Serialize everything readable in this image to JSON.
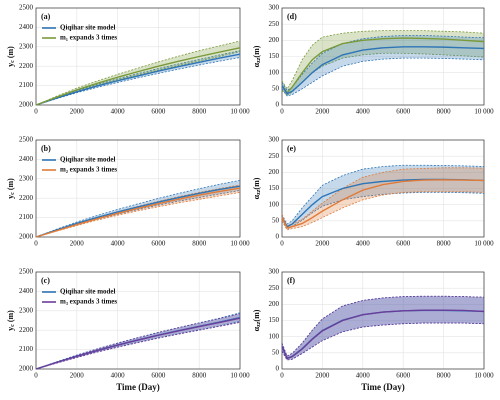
{
  "chart_data": [
    {
      "type": "line",
      "label": "(a)",
      "ylabel": {
        "main": "y",
        "sub": "c",
        "unit": " (m)"
      },
      "legend": "upper left",
      "grid": true,
      "x": [
        0,
        1000,
        2000,
        3000,
        4000,
        5000,
        6000,
        7000,
        8000,
        9000,
        10000
      ],
      "xlim": [
        0,
        10000
      ],
      "xticks": [
        0,
        2000,
        4000,
        6000,
        8000,
        {
          "value": 10000,
          "label": "10 000"
        }
      ],
      "ylim": [
        2000,
        2500
      ],
      "yticks": [
        2000,
        2100,
        2200,
        2300,
        2400,
        2500
      ],
      "series": [
        {
          "name": "Qiqihar site model",
          "color": "#2e75b6",
          "values": [
            2000,
            2035,
            2068,
            2098,
            2125,
            2150,
            2175,
            2198,
            2220,
            2242,
            2262
          ],
          "upper": [
            2000,
            2038,
            2074,
            2106,
            2135,
            2162,
            2188,
            2212,
            2235,
            2258,
            2280
          ],
          "lower": [
            2000,
            2032,
            2063,
            2091,
            2116,
            2140,
            2163,
            2185,
            2206,
            2226,
            2245
          ]
        },
        {
          "name": "m₁ expands 3 times",
          "color": "#7a9a3a",
          "values": [
            2000,
            2040,
            2078,
            2112,
            2143,
            2172,
            2200,
            2226,
            2250,
            2273,
            2295
          ],
          "upper": [
            2000,
            2045,
            2087,
            2124,
            2158,
            2190,
            2222,
            2252,
            2280,
            2305,
            2330
          ],
          "lower": [
            2000,
            2036,
            2070,
            2101,
            2129,
            2155,
            2180,
            2204,
            2227,
            2250,
            2275
          ]
        }
      ]
    },
    {
      "type": "line",
      "label": "(d)",
      "ylabel": {
        "main": "α",
        "sub": "zz",
        "unit": "(m)"
      },
      "grid": true,
      "x": [
        0,
        250,
        500,
        1000,
        1500,
        2000,
        3000,
        4000,
        5000,
        6000,
        7000,
        8000,
        9000,
        10000
      ],
      "xlim": [
        0,
        10000
      ],
      "xticks": [
        0,
        2000,
        4000,
        6000,
        8000,
        {
          "value": 10000,
          "label": "10 000"
        }
      ],
      "ylim": [
        0,
        300
      ],
      "yticks": [
        0,
        50,
        100,
        150,
        200,
        250,
        300
      ],
      "series": [
        {
          "color": "#7a9a3a",
          "values": [
            60,
            38,
            55,
            100,
            140,
            165,
            190,
            200,
            205,
            207,
            206,
            204,
            200,
            196
          ],
          "upper": [
            75,
            50,
            75,
            140,
            185,
            210,
            222,
            228,
            230,
            230,
            230,
            228,
            226,
            222
          ],
          "lower": [
            45,
            30,
            40,
            70,
            100,
            120,
            145,
            155,
            160,
            160,
            158,
            155,
            152,
            148
          ]
        },
        {
          "color": "#2e75b6",
          "values": [
            60,
            35,
            42,
            70,
            100,
            125,
            155,
            170,
            177,
            180,
            180,
            179,
            177,
            175
          ],
          "upper": [
            70,
            45,
            55,
            95,
            130,
            160,
            190,
            205,
            212,
            215,
            215,
            213,
            210,
            208
          ],
          "lower": [
            50,
            28,
            32,
            50,
            70,
            90,
            120,
            135,
            142,
            145,
            145,
            144,
            142,
            140
          ]
        }
      ]
    },
    {
      "type": "line",
      "label": "(b)",
      "ylabel": {
        "main": "y",
        "sub": "c",
        "unit": " (m)"
      },
      "legend": "upper left",
      "grid": true,
      "x": [
        0,
        1000,
        2000,
        3000,
        4000,
        5000,
        6000,
        7000,
        8000,
        9000,
        10000
      ],
      "xlim": [
        0,
        10000
      ],
      "xticks": [
        0,
        2000,
        4000,
        6000,
        8000,
        {
          "value": 10000,
          "label": "10 000"
        }
      ],
      "ylim": [
        2000,
        2500
      ],
      "yticks": [
        2000,
        2100,
        2200,
        2300,
        2400,
        2500
      ],
      "series": [
        {
          "name": "Qiqihar site model",
          "color": "#2e75b6",
          "values": [
            2000,
            2036,
            2070,
            2101,
            2129,
            2155,
            2180,
            2203,
            2225,
            2245,
            2262
          ],
          "upper": [
            2000,
            2040,
            2077,
            2111,
            2142,
            2171,
            2199,
            2225,
            2249,
            2272,
            2292
          ],
          "lower": [
            2000,
            2033,
            2064,
            2092,
            2118,
            2142,
            2164,
            2185,
            2204,
            2222,
            2240
          ]
        },
        {
          "name": "m₂ expands 3 times",
          "color": "#e07b39",
          "values": [
            2000,
            2032,
            2064,
            2094,
            2122,
            2148,
            2172,
            2195,
            2216,
            2235,
            2252
          ],
          "upper": [
            2000,
            2034,
            2068,
            2100,
            2130,
            2158,
            2184,
            2208,
            2230,
            2250,
            2268
          ],
          "lower": [
            2000,
            2030,
            2059,
            2087,
            2112,
            2135,
            2156,
            2176,
            2194,
            2212,
            2230
          ]
        }
      ]
    },
    {
      "type": "line",
      "label": "(e)",
      "ylabel": {
        "main": "α",
        "sub": "zz",
        "unit": "(m)"
      },
      "grid": true,
      "x": [
        0,
        250,
        500,
        1000,
        1500,
        2000,
        3000,
        4000,
        5000,
        6000,
        7000,
        8000,
        9000,
        10000
      ],
      "xlim": [
        0,
        10000
      ],
      "xticks": [
        0,
        2000,
        4000,
        6000,
        8000,
        {
          "value": 10000,
          "label": "10 000"
        }
      ],
      "ylim": [
        0,
        300
      ],
      "yticks": [
        0,
        50,
        100,
        150,
        200,
        250,
        300
      ],
      "series": [
        {
          "color": "#2e75b6",
          "values": [
            60,
            32,
            40,
            70,
            100,
            125,
            150,
            165,
            172,
            176,
            178,
            178,
            177,
            175
          ],
          "upper": [
            70,
            40,
            50,
            90,
            125,
            160,
            190,
            210,
            218,
            222,
            222,
            221,
            220,
            218
          ],
          "lower": [
            50,
            25,
            32,
            52,
            75,
            95,
            115,
            125,
            132,
            136,
            138,
            138,
            137,
            135
          ]
        },
        {
          "color": "#e07b39",
          "values": [
            60,
            28,
            32,
            42,
            60,
            80,
            115,
            145,
            162,
            172,
            176,
            177,
            176,
            175
          ],
          "upper": [
            70,
            35,
            40,
            55,
            80,
            105,
            150,
            185,
            200,
            210,
            212,
            214,
            214,
            213
          ],
          "lower": [
            50,
            22,
            26,
            32,
            45,
            60,
            90,
            115,
            130,
            138,
            140,
            140,
            140,
            138
          ]
        }
      ]
    },
    {
      "type": "line",
      "label": "(c)",
      "ylabel": {
        "main": "y",
        "sub": "c",
        "unit": " (m)"
      },
      "xlabel": "Time (Day)",
      "legend": "upper left",
      "grid": true,
      "x": [
        0,
        1000,
        2000,
        3000,
        4000,
        5000,
        6000,
        7000,
        8000,
        9000,
        10000
      ],
      "xlim": [
        0,
        10000
      ],
      "xticks": [
        0,
        2000,
        4000,
        6000,
        8000,
        {
          "value": 10000,
          "label": "10 000"
        }
      ],
      "ylim": [
        2000,
        2500
      ],
      "yticks": [
        2000,
        2100,
        2200,
        2300,
        2400,
        2500
      ],
      "series": [
        {
          "name": "Qiqihar site model",
          "color": "#2e75b6",
          "values": [
            2000,
            2034,
            2066,
            2096,
            2124,
            2150,
            2175,
            2198,
            2220,
            2242,
            2265
          ],
          "upper": [
            2000,
            2037,
            2072,
            2104,
            2134,
            2162,
            2189,
            2214,
            2238,
            2262,
            2290
          ],
          "lower": [
            2000,
            2031,
            2060,
            2088,
            2114,
            2138,
            2161,
            2182,
            2202,
            2222,
            2245
          ]
        },
        {
          "name": "m₃ expands 3 times",
          "color": "#6a3d9a",
          "values": [
            2000,
            2033,
            2065,
            2095,
            2123,
            2149,
            2174,
            2197,
            2219,
            2240,
            2262
          ],
          "upper": [
            2000,
            2036,
            2071,
            2103,
            2133,
            2161,
            2188,
            2213,
            2237,
            2260,
            2285
          ],
          "lower": [
            2000,
            2030,
            2059,
            2087,
            2112,
            2136,
            2159,
            2180,
            2200,
            2220,
            2240
          ]
        }
      ]
    },
    {
      "type": "line",
      "label": "(f)",
      "ylabel": {
        "main": "α",
        "sub": "zz",
        "unit": "(m)"
      },
      "xlabel": "Time (Day)",
      "grid": true,
      "x": [
        0,
        250,
        500,
        1000,
        1500,
        2000,
        3000,
        4000,
        5000,
        6000,
        7000,
        8000,
        9000,
        10000
      ],
      "xlim": [
        0,
        10000
      ],
      "xticks": [
        0,
        2000,
        4000,
        6000,
        8000,
        {
          "value": 10000,
          "label": "10 000"
        }
      ],
      "ylim": [
        0,
        300
      ],
      "yticks": [
        0,
        50,
        100,
        150,
        200,
        250,
        300
      ],
      "series": [
        {
          "color": "#2e75b6",
          "values": [
            70,
            33,
            39,
            63,
            93,
            119,
            151,
            168,
            176,
            180,
            181,
            181,
            180,
            178
          ],
          "upper": [
            80,
            40,
            48,
            80,
            120,
            155,
            195,
            212,
            220,
            224,
            225,
            225,
            224,
            222
          ],
          "lower": [
            55,
            28,
            30,
            48,
            68,
            88,
            115,
            130,
            136,
            140,
            142,
            142,
            142,
            140
          ]
        },
        {
          "color": "#6a3d9a",
          "values": [
            70,
            33,
            38,
            62,
            92,
            118,
            150,
            168,
            176,
            180,
            182,
            182,
            181,
            178
          ],
          "upper": [
            80,
            40,
            48,
            80,
            120,
            155,
            195,
            212,
            220,
            224,
            225,
            225,
            224,
            222
          ],
          "lower": [
            55,
            28,
            30,
            48,
            68,
            88,
            115,
            130,
            136,
            140,
            142,
            142,
            142,
            140
          ]
        }
      ]
    }
  ]
}
